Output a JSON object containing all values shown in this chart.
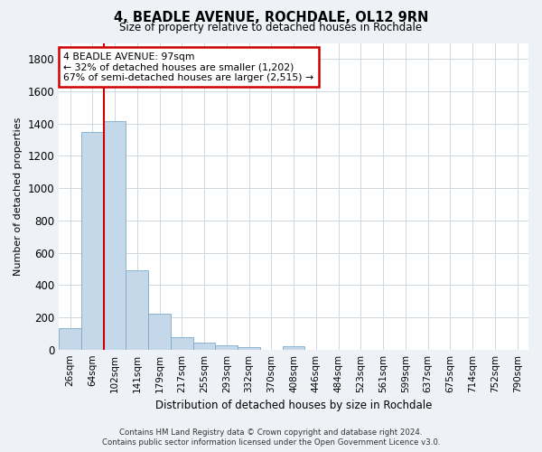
{
  "title": "4, BEADLE AVENUE, ROCHDALE, OL12 9RN",
  "subtitle": "Size of property relative to detached houses in Rochdale",
  "xlabel": "Distribution of detached houses by size in Rochdale",
  "ylabel": "Number of detached properties",
  "bar_color": "#c5d8ea",
  "bar_edge_color": "#7aaac8",
  "categories": [
    "26sqm",
    "64sqm",
    "102sqm",
    "141sqm",
    "179sqm",
    "217sqm",
    "255sqm",
    "293sqm",
    "332sqm",
    "370sqm",
    "408sqm",
    "446sqm",
    "484sqm",
    "523sqm",
    "561sqm",
    "599sqm",
    "637sqm",
    "675sqm",
    "714sqm",
    "752sqm",
    "790sqm"
  ],
  "values": [
    135,
    1350,
    1415,
    490,
    225,
    75,
    42,
    28,
    15,
    0,
    18,
    0,
    0,
    0,
    0,
    0,
    0,
    0,
    0,
    0,
    0
  ],
  "ylim": [
    0,
    1900
  ],
  "yticks": [
    0,
    200,
    400,
    600,
    800,
    1000,
    1200,
    1400,
    1600,
    1800
  ],
  "vline_index": 1.5,
  "vline_color": "#cc0000",
  "annotation_line1": "4 BEADLE AVENUE: 97sqm",
  "annotation_line2": "← 32% of detached houses are smaller (1,202)",
  "annotation_line3": "67% of semi-detached houses are larger (2,515) →",
  "annotation_box_color": "#cc0000",
  "footer_line1": "Contains HM Land Registry data © Crown copyright and database right 2024.",
  "footer_line2": "Contains public sector information licensed under the Open Government Licence v3.0.",
  "background_color": "#eef2f7",
  "plot_bg_color": "#ffffff",
  "grid_color": "#d0d8e0"
}
